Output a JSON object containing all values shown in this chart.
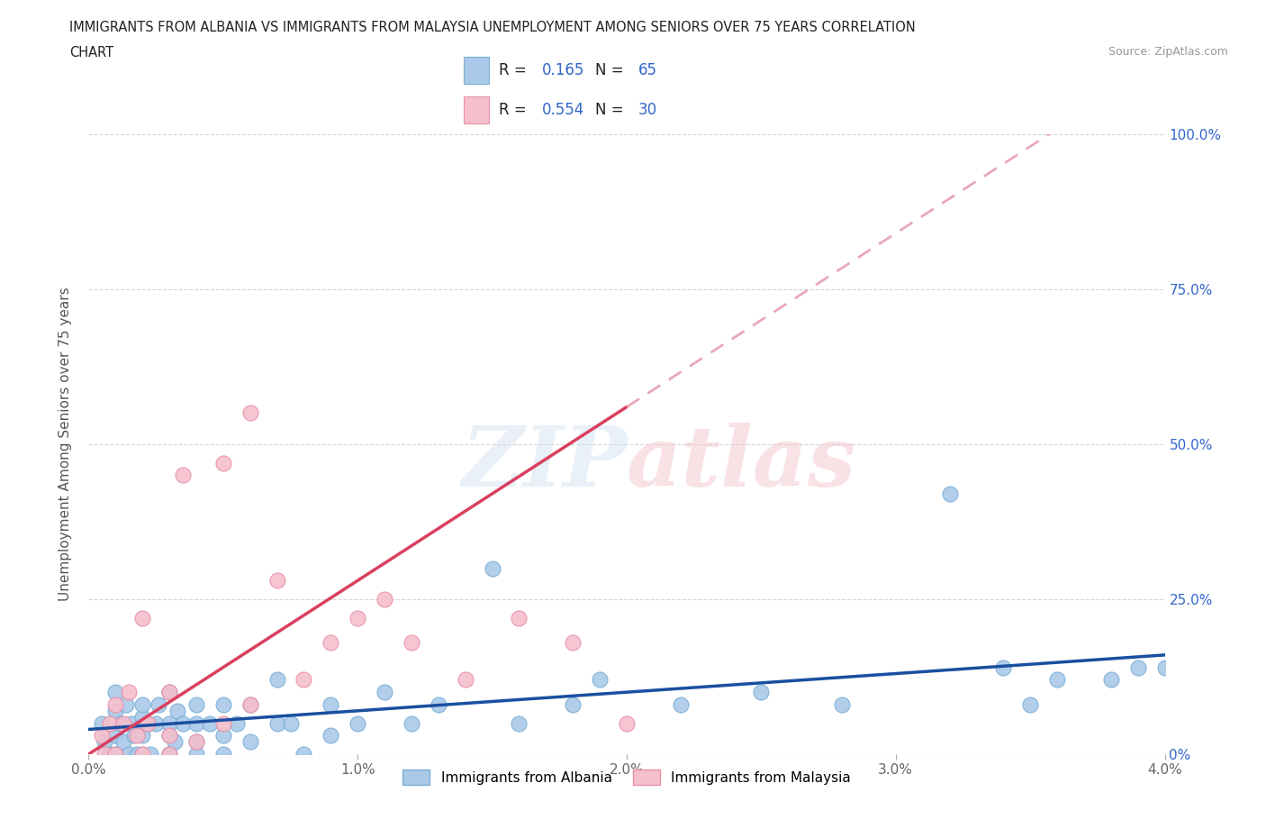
{
  "title_line1": "IMMIGRANTS FROM ALBANIA VS IMMIGRANTS FROM MALAYSIA UNEMPLOYMENT AMONG SENIORS OVER 75 YEARS CORRELATION",
  "title_line2": "CHART",
  "source_text": "Source: ZipAtlas.com",
  "ylabel": "Unemployment Among Seniors over 75 years",
  "xlim": [
    0.0,
    0.04
  ],
  "ylim": [
    0.0,
    1.0
  ],
  "xtick_labels": [
    "0.0%",
    "1.0%",
    "2.0%",
    "3.0%",
    "4.0%"
  ],
  "xtick_values": [
    0.0,
    0.01,
    0.02,
    0.03,
    0.04
  ],
  "ytick_labels": [
    "0%",
    "25.0%",
    "50.0%",
    "75.0%",
    "100.0%"
  ],
  "ytick_values": [
    0.0,
    0.25,
    0.5,
    0.75,
    1.0
  ],
  "albania_color": "#aac9e8",
  "malaysia_color": "#f5bfcc",
  "albania_edge_color": "#7aafd6",
  "malaysia_edge_color": "#e88fa8",
  "trend_albania_color": "#1a4fa0",
  "trend_malaysia_color": "#d94060",
  "trend_malaysia_dashed_color": "#e8a8b8",
  "R_albania": 0.165,
  "N_albania": 65,
  "R_malaysia": 0.554,
  "N_malaysia": 30,
  "legend_label_albania": "Immigrants from Albania",
  "legend_label_malaysia": "Immigrants from Malaysia",
  "watermark": "ZIPatlas",
  "albania_x": [
    0.0005,
    0.0006,
    0.0008,
    0.001,
    0.001,
    0.001,
    0.001,
    0.0012,
    0.0013,
    0.0014,
    0.0015,
    0.0016,
    0.0017,
    0.0018,
    0.002,
    0.002,
    0.002,
    0.002,
    0.0022,
    0.0023,
    0.0025,
    0.0026,
    0.003,
    0.003,
    0.003,
    0.003,
    0.003,
    0.0032,
    0.0033,
    0.0035,
    0.004,
    0.004,
    0.004,
    0.004,
    0.0045,
    0.005,
    0.005,
    0.005,
    0.0055,
    0.006,
    0.006,
    0.007,
    0.007,
    0.0075,
    0.008,
    0.009,
    0.009,
    0.01,
    0.011,
    0.012,
    0.013,
    0.015,
    0.016,
    0.018,
    0.019,
    0.022,
    0.025,
    0.028,
    0.032,
    0.034,
    0.035,
    0.036,
    0.038,
    0.039,
    0.04
  ],
  "albania_y": [
    0.05,
    0.02,
    0.0,
    0.0,
    0.03,
    0.07,
    0.1,
    0.05,
    0.02,
    0.08,
    0.0,
    0.05,
    0.03,
    0.0,
    0.0,
    0.03,
    0.06,
    0.08,
    0.05,
    0.0,
    0.05,
    0.08,
    0.0,
    0.0,
    0.03,
    0.05,
    0.1,
    0.02,
    0.07,
    0.05,
    0.0,
    0.02,
    0.05,
    0.08,
    0.05,
    0.0,
    0.03,
    0.08,
    0.05,
    0.02,
    0.08,
    0.05,
    0.12,
    0.05,
    0.0,
    0.03,
    0.08,
    0.05,
    0.1,
    0.05,
    0.08,
    0.3,
    0.05,
    0.08,
    0.12,
    0.08,
    0.1,
    0.08,
    0.42,
    0.14,
    0.08,
    0.12,
    0.12,
    0.14,
    0.14
  ],
  "malaysia_x": [
    0.0005,
    0.0006,
    0.0008,
    0.001,
    0.001,
    0.0013,
    0.0015,
    0.0018,
    0.002,
    0.002,
    0.0022,
    0.003,
    0.003,
    0.003,
    0.0035,
    0.004,
    0.005,
    0.005,
    0.006,
    0.006,
    0.007,
    0.008,
    0.009,
    0.01,
    0.011,
    0.012,
    0.014,
    0.016,
    0.018,
    0.02
  ],
  "malaysia_y": [
    0.03,
    0.0,
    0.05,
    0.0,
    0.08,
    0.05,
    0.1,
    0.03,
    0.0,
    0.22,
    0.05,
    0.0,
    0.03,
    0.1,
    0.45,
    0.02,
    0.05,
    0.47,
    0.08,
    0.55,
    0.28,
    0.12,
    0.18,
    0.22,
    0.25,
    0.18,
    0.12,
    0.22,
    0.18,
    0.05
  ],
  "trend_albania_slope": 3.0,
  "trend_albania_intercept": 0.04,
  "trend_malaysia_slope": 28.0,
  "trend_malaysia_intercept": 0.0
}
